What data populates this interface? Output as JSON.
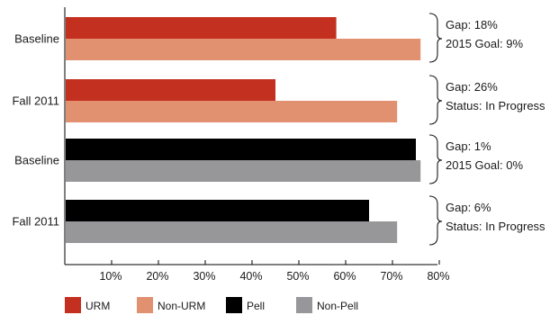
{
  "chart_data": {
    "type": "bar",
    "orientation": "horizontal",
    "title": "",
    "xlabel": "",
    "ylabel": "",
    "xlim": [
      0,
      80
    ],
    "x_ticks": [
      "10%",
      "20%",
      "30%",
      "40%",
      "50%",
      "60%",
      "70%",
      "80%"
    ],
    "grid": false,
    "legend_position": "bottom",
    "groups": [
      {
        "category": "Baseline",
        "bars": [
          {
            "series": "URM",
            "value": 58
          },
          {
            "series": "Non-URM",
            "value": 76
          }
        ],
        "annotation": [
          "Gap: 18%",
          "2015 Goal: 9%"
        ]
      },
      {
        "category": "Fall 2011",
        "bars": [
          {
            "series": "URM",
            "value": 45
          },
          {
            "series": "Non-URM",
            "value": 71
          }
        ],
        "annotation": [
          "Gap: 26%",
          "Status: In Progress"
        ]
      },
      {
        "category": "Baseline",
        "bars": [
          {
            "series": "Pell",
            "value": 75
          },
          {
            "series": "Non-Pell",
            "value": 76
          }
        ],
        "annotation": [
          "Gap: 1%",
          "2015 Goal: 0%"
        ]
      },
      {
        "category": "Fall 2011",
        "bars": [
          {
            "series": "Pell",
            "value": 65
          },
          {
            "series": "Non-Pell",
            "value": 71
          }
        ],
        "annotation": [
          "Gap: 6%",
          "Status: In Progress"
        ]
      }
    ],
    "series": [
      {
        "name": "URM",
        "color": "#c4301f"
      },
      {
        "name": "Non-URM",
        "color": "#e29170"
      },
      {
        "name": "Pell",
        "color": "#000000"
      },
      {
        "name": "Non-Pell",
        "color": "#97979a"
      }
    ]
  }
}
